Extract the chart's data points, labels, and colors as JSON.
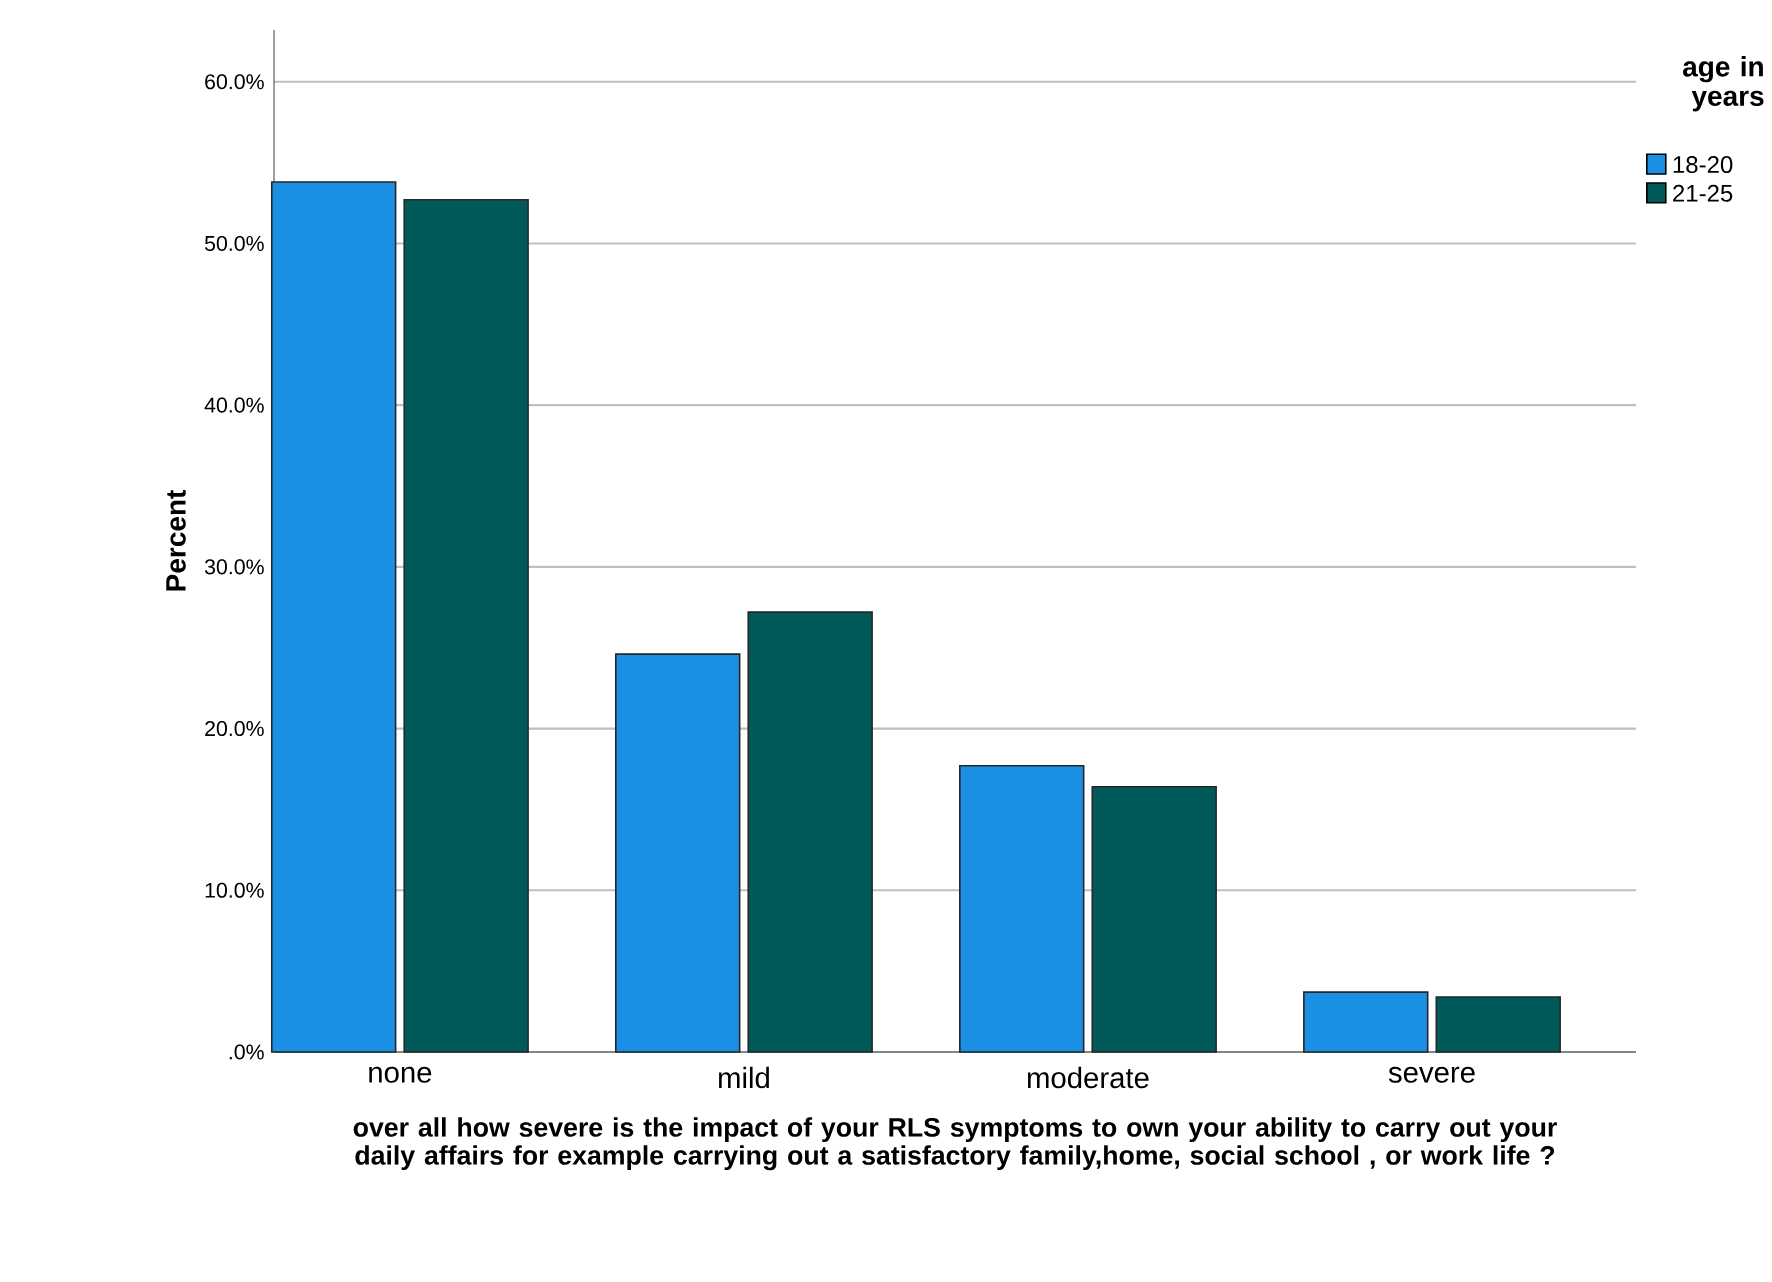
{
  "chart_data": {
    "type": "bar",
    "xlabel": "over all how severe is the impact of your RLS symptoms to own your ability to carry out your daily affairs for example carrying out a satisfactory family,home, social school , or work life ?",
    "ylabel": "Percent",
    "legend_title": "age in years",
    "categories": [
      "none",
      "mild",
      "moderate",
      "severe"
    ],
    "series": [
      {
        "name": "18-20",
        "color": "#1a8fe3",
        "values": [
          53.8,
          24.6,
          17.7,
          3.7
        ]
      },
      {
        "name": "21-25",
        "color": "#005a5a",
        "values": [
          52.7,
          27.2,
          16.4,
          3.4
        ]
      }
    ],
    "ylim": [
      0,
      63.2
    ],
    "yticks": [
      {
        "value": 0,
        "label": ".0%"
      },
      {
        "value": 10,
        "label": "10.0%"
      },
      {
        "value": 20,
        "label": "20.0%"
      },
      {
        "value": 30,
        "label": "30.0%"
      },
      {
        "value": 40,
        "label": "40.0%"
      },
      {
        "value": 50,
        "label": "50.0%"
      },
      {
        "value": 60,
        "label": "60.0%"
      }
    ],
    "grid": "y",
    "legend": "top right"
  }
}
